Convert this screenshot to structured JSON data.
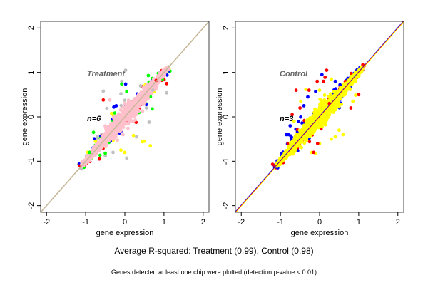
{
  "chart_data": {
    "type": "scatter",
    "title": "Average R-squared: Treatment (0.99), Control (0.98)",
    "footnote": "Genes detected at least one chip were plotted (detection p-value < 0.01)",
    "panels": [
      {
        "name": "Treatment",
        "n_label": "n=6",
        "xlabel": "gene expression",
        "ylabel": "gene expression",
        "xlim": [
          -2.15,
          2.15
        ],
        "ylim": [
          -2.15,
          2.15
        ],
        "xticks": [
          "-2",
          "-1",
          "0",
          "1",
          "2"
        ],
        "yticks": [
          "-2",
          "-1",
          "0",
          "1",
          "2"
        ],
        "grid": false,
        "diagonal": {
          "from": [
            -2.15,
            -2.15
          ],
          "to": [
            2.15,
            2.15
          ],
          "colors": [
            "#c8b89a"
          ]
        },
        "cloud_range": [
          -1.15,
          1.15
        ],
        "series_colors": [
          "#c0c0c0",
          "#00ff00",
          "#ffff00",
          "#0000ff",
          "#ff0000"
        ],
        "main_color": "#ffc0cb",
        "outliers": [
          {
            "x": 0.02,
            "y": 1.05,
            "color": "#c0c0c0"
          },
          {
            "x": -0.08,
            "y": 0.8,
            "color": "#c0c0c0"
          },
          {
            "x": -0.08,
            "y": 0.74,
            "color": "#00ff00"
          },
          {
            "x": 0.02,
            "y": 0.74,
            "color": "#0000ff"
          },
          {
            "x": -0.55,
            "y": 0.58,
            "color": "#c0c0c0"
          },
          {
            "x": -0.55,
            "y": 0.38,
            "color": "#ff0000"
          },
          {
            "x": -0.38,
            "y": 0.38,
            "color": "#ffc0cb"
          },
          {
            "x": -0.1,
            "y": 0.52,
            "color": "#c0c0c0"
          },
          {
            "x": 0.05,
            "y": 0.57,
            "color": "#00ff00"
          },
          {
            "x": -0.46,
            "y": 0.19,
            "color": "#c0c0c0"
          },
          {
            "x": -0.22,
            "y": 0.25,
            "color": "#0000ff"
          },
          {
            "x": -0.28,
            "y": 0.22,
            "color": "#0000ff"
          },
          {
            "x": 1.07,
            "y": 0.75,
            "color": "#ff0000"
          },
          {
            "x": 1.07,
            "y": 0.54,
            "color": "#c0c0c0"
          },
          {
            "x": 0.6,
            "y": 0.93,
            "color": "#00ff00"
          },
          {
            "x": 0.8,
            "y": 0.82,
            "color": "#ff0000"
          },
          {
            "x": 0.55,
            "y": 0.2,
            "color": "#c0c0c0"
          },
          {
            "x": 0.7,
            "y": 0.18,
            "color": "#00ff00"
          },
          {
            "x": 0.62,
            "y": -0.12,
            "color": "#c0c0c0"
          },
          {
            "x": 0.5,
            "y": -0.55,
            "color": "#ffff00"
          },
          {
            "x": 0.65,
            "y": -0.65,
            "color": "#ffff00"
          },
          {
            "x": 0.45,
            "y": -0.56,
            "color": "#ffff00"
          },
          {
            "x": 0.05,
            "y": -0.93,
            "color": "#c0c0c0"
          },
          {
            "x": 0.0,
            "y": -0.8,
            "color": "#ffff00"
          },
          {
            "x": -0.1,
            "y": -0.75,
            "color": "#ffff00"
          },
          {
            "x": -0.3,
            "y": -0.8,
            "color": "#c0c0c0"
          },
          {
            "x": -0.5,
            "y": -0.88,
            "color": "#c0c0c0"
          },
          {
            "x": -0.65,
            "y": -0.95,
            "color": "#ff0000"
          },
          {
            "x": -0.5,
            "y": -0.82,
            "color": "#00ff00"
          },
          {
            "x": 0.3,
            "y": -0.45,
            "color": "#c0c0c0"
          },
          {
            "x": 0.22,
            "y": -0.42,
            "color": "#ffff00"
          },
          {
            "x": -0.7,
            "y": -0.45,
            "color": "#c0c0c0"
          },
          {
            "x": -0.9,
            "y": -0.8,
            "color": "#00ff00"
          },
          {
            "x": -0.75,
            "y": -0.55,
            "color": "#ffff00"
          },
          {
            "x": -0.8,
            "y": -0.35,
            "color": "#00ff00"
          },
          {
            "x": 0.72,
            "y": 0.6,
            "color": "#c0c0c0"
          },
          {
            "x": 0.4,
            "y": 0.7,
            "color": "#c0c0c0"
          }
        ]
      },
      {
        "name": "Control",
        "n_label": "n=3",
        "xlabel": "gene expression",
        "ylabel": "gene expression",
        "xlim": [
          -2.15,
          2.15
        ],
        "ylim": [
          -2.15,
          2.15
        ],
        "xticks": [
          "-2",
          "-1",
          "0",
          "1",
          "2"
        ],
        "yticks": [
          "-2",
          "-1",
          "0",
          "1",
          "2"
        ],
        "grid": false,
        "diagonal": {
          "from": [
            -2.15,
            -2.15
          ],
          "to": [
            2.15,
            2.15
          ],
          "colors": [
            "#0000ff",
            "#ff0000",
            "#ffff00"
          ]
        },
        "cloud_range": [
          -1.15,
          1.15
        ],
        "series_colors": [
          "#0000ff",
          "#ff0000"
        ],
        "main_color": "#ffff00",
        "outliers": [
          {
            "x": 0.18,
            "y": 1.05,
            "color": "#ff0000"
          },
          {
            "x": 0.06,
            "y": 0.95,
            "color": "#0000ff"
          },
          {
            "x": 0.14,
            "y": 0.89,
            "color": "#ff0000"
          },
          {
            "x": -0.06,
            "y": 0.8,
            "color": "#ff0000"
          },
          {
            "x": 0.1,
            "y": 0.8,
            "color": "#ff0000"
          },
          {
            "x": -0.6,
            "y": 0.6,
            "color": "#ff0000"
          },
          {
            "x": -0.35,
            "y": 0.62,
            "color": "#ffff00"
          },
          {
            "x": -0.27,
            "y": 0.6,
            "color": "#ff0000"
          },
          {
            "x": -0.1,
            "y": 0.57,
            "color": "#0000ff"
          },
          {
            "x": 0.0,
            "y": 0.6,
            "color": "#ffff00"
          },
          {
            "x": 0.3,
            "y": 0.85,
            "color": "#ffff00"
          },
          {
            "x": 0.4,
            "y": 0.8,
            "color": "#0000ff"
          },
          {
            "x": -0.48,
            "y": 0.35,
            "color": "#ffff00"
          },
          {
            "x": -0.3,
            "y": 0.45,
            "color": "#0000ff"
          },
          {
            "x": -0.4,
            "y": 0.25,
            "color": "#0000ff"
          },
          {
            "x": -0.5,
            "y": 0.2,
            "color": "#ff0000"
          },
          {
            "x": -0.7,
            "y": 0.05,
            "color": "#ff0000"
          },
          {
            "x": -0.85,
            "y": -0.4,
            "color": "#0000ff"
          },
          {
            "x": -0.8,
            "y": -0.4,
            "color": "#0000ff"
          },
          {
            "x": -0.75,
            "y": -0.2,
            "color": "#0000ff"
          },
          {
            "x": -0.65,
            "y": -0.1,
            "color": "#ffff00"
          },
          {
            "x": 1.0,
            "y": 0.5,
            "color": "#ff0000"
          },
          {
            "x": 0.92,
            "y": 0.49,
            "color": "#ffff00"
          },
          {
            "x": 0.85,
            "y": 0.35,
            "color": "#ffff00"
          },
          {
            "x": 0.8,
            "y": 0.2,
            "color": "#ff0000"
          },
          {
            "x": 0.5,
            "y": -0.3,
            "color": "#ffff00"
          },
          {
            "x": 0.6,
            "y": -0.4,
            "color": "#ffff00"
          },
          {
            "x": 0.4,
            "y": -0.45,
            "color": "#ffff00"
          },
          {
            "x": 0.3,
            "y": -0.5,
            "color": "#ffff00"
          },
          {
            "x": 0.0,
            "y": -0.6,
            "color": "#ffff00"
          },
          {
            "x": -0.05,
            "y": -0.6,
            "color": "#ff0000"
          },
          {
            "x": -0.2,
            "y": -0.8,
            "color": "#ffff00"
          },
          {
            "x": -0.1,
            "y": -0.82,
            "color": "#ffff00"
          },
          {
            "x": -0.15,
            "y": -0.8,
            "color": "#ff0000"
          },
          {
            "x": 0.25,
            "y": 0.3,
            "color": "#ff0000"
          }
        ]
      }
    ]
  }
}
